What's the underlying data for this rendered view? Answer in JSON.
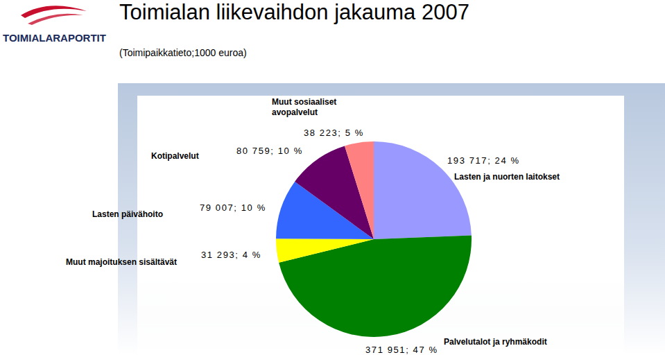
{
  "logo": "TOIMIALARAPORTIT",
  "chart_data": {
    "type": "pie",
    "title": "Toimialan liikevaihdon jakauma 2007",
    "subtitle": "(Toimipaikkatieto;1000 euroa)",
    "categories": [
      "Lasten ja nuorten laitokset",
      "Palvelutalot ja ryhmäkodit",
      "Muut majoituksen sisältävät",
      "Lasten päivähoito",
      "Kotipalvelut",
      "Muut sosiaaliset avopalvelut"
    ],
    "values": [
      193717,
      371951,
      31293,
      79007,
      80759,
      38223
    ],
    "value_labels": [
      "193 717; 24 %",
      "371 951; 47 %",
      "31 293; 4 %",
      "79 007; 10 %",
      "80 759; 10 %",
      "38 223; 5 %"
    ],
    "colors": [
      "#9999ff",
      "#008000",
      "#ffff00",
      "#3366ff",
      "#660066",
      "#ff8080"
    ],
    "data_labels": true
  }
}
